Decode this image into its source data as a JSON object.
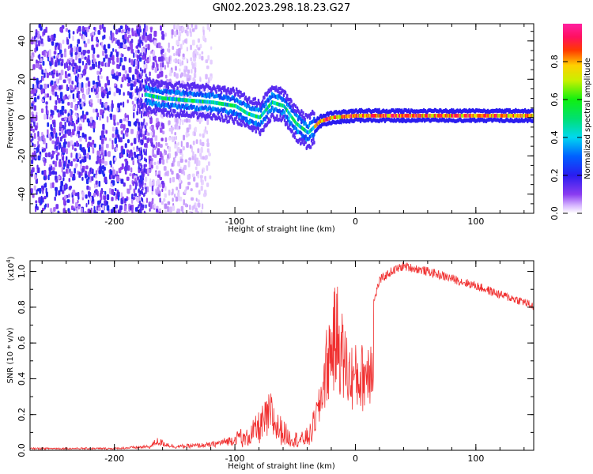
{
  "title": "GN02.2023.298.18.23.G27",
  "chart_data": [
    {
      "type": "heatmap",
      "name": "spectrogram",
      "xlabel": "Height of straight line (km)",
      "ylabel": "Frequency (Hz)",
      "xlim": [
        -270,
        148
      ],
      "ylim": [
        -50,
        49
      ],
      "xticks": [
        -200,
        -100,
        0,
        100
      ],
      "yticks": [
        -40,
        -20,
        0,
        20,
        40
      ],
      "colorbar": {
        "label": "Normalized spectral amplitude",
        "range": [
          0.0,
          1.0
        ],
        "ticks": [
          "0.0",
          "0.2",
          "0.4",
          "0.6",
          "0.8"
        ],
        "colormap": "white-violet-blue-cyan-green-yellow-red-magenta"
      },
      "features": [
        {
          "description_x_range": [
            -270,
            -175
          ],
          "freq_range": [
            -50,
            49
          ],
          "amplitude": [
            0.05,
            0.2
          ],
          "pattern": "scattered noise"
        },
        {
          "description_x_range": [
            -175,
            -120
          ],
          "freq_range": [
            -50,
            49
          ],
          "amplitude": [
            0.02,
            0.1
          ],
          "pattern": "sparse noise"
        },
        {
          "ridge": [
            [
              -175,
              12
            ],
            [
              -160,
              10
            ],
            [
              -140,
              9
            ],
            [
              -120,
              8
            ],
            [
              -100,
              6
            ],
            [
              -90,
              2
            ],
            [
              -80,
              0
            ],
            [
              -70,
              8
            ],
            [
              -60,
              6
            ],
            [
              -50,
              -3
            ],
            [
              -40,
              -8
            ],
            [
              -30,
              -2
            ],
            [
              -20,
              0
            ],
            [
              0,
              1
            ],
            [
              50,
              1
            ],
            [
              100,
              1
            ],
            [
              148,
              1
            ]
          ]
        }
      ]
    },
    {
      "type": "line",
      "name": "snr",
      "xlabel": "Height of straight line (km)",
      "ylabel": "SNR (10 * v/v)",
      "y_multiplier": "(x10",
      "y_multiplier_exp": "4",
      "y_multiplier_close": ")",
      "xlim": [
        -270,
        148
      ],
      "ylim": [
        0.0,
        1.06
      ],
      "xticks": [
        -200,
        -100,
        0,
        100
      ],
      "yticks": [
        "0.0",
        "0.2",
        "0.4",
        "0.6",
        "0.8",
        "1.0"
      ],
      "color": "#f03030",
      "envelope": [
        [
          -270,
          0.01
        ],
        [
          -200,
          0.01
        ],
        [
          -170,
          0.02
        ],
        [
          -165,
          0.05
        ],
        [
          -150,
          0.02
        ],
        [
          -120,
          0.03
        ],
        [
          -100,
          0.06
        ],
        [
          -90,
          0.12
        ],
        [
          -80,
          0.22
        ],
        [
          -75,
          0.28
        ],
        [
          -70,
          0.34
        ],
        [
          -65,
          0.22
        ],
        [
          -60,
          0.18
        ],
        [
          -55,
          0.12
        ],
        [
          -45,
          0.1
        ],
        [
          -38,
          0.14
        ],
        [
          -30,
          0.35
        ],
        [
          -25,
          0.65
        ],
        [
          -20,
          0.85
        ],
        [
          -15,
          0.95
        ],
        [
          -10,
          0.75
        ],
        [
          -5,
          0.62
        ],
        [
          0,
          0.6
        ],
        [
          5,
          0.6
        ],
        [
          10,
          0.65
        ],
        [
          15,
          0.82
        ],
        [
          20,
          0.95
        ],
        [
          30,
          1.0
        ],
        [
          40,
          1.03
        ],
        [
          60,
          1.0
        ],
        [
          80,
          0.96
        ],
        [
          100,
          0.92
        ],
        [
          120,
          0.87
        ],
        [
          140,
          0.83
        ],
        [
          148,
          0.8
        ]
      ]
    }
  ]
}
